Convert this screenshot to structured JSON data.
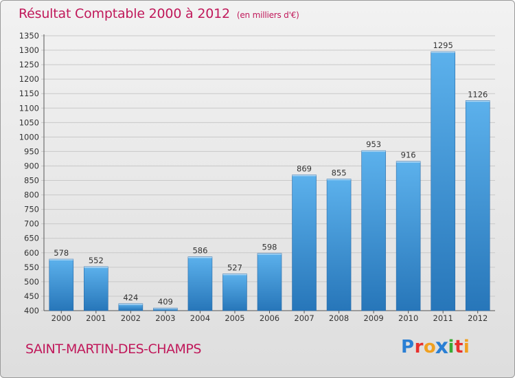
{
  "title": "Résultat Comptable 2000 à 2012",
  "subtitle": "(en milliers d'€)",
  "commune": "SAINT-MARTIN-DES-CHAMPS",
  "logo": {
    "text": "Proxiti",
    "letters": [
      {
        "char": "P",
        "color": "#2a7fd4"
      },
      {
        "char": "r",
        "color": "#e8302c"
      },
      {
        "char": "o",
        "color": "#f0a020"
      },
      {
        "char": "x",
        "color": "#2a7fd4"
      },
      {
        "char": "i",
        "color": "#3aaa35"
      },
      {
        "char": "t",
        "color": "#e8302c"
      },
      {
        "char": "i",
        "color": "#f0a020"
      }
    ]
  },
  "colors": {
    "title": "#c0185a",
    "bar_light": "#5cb1ec",
    "bar_dark": "#2776b9",
    "grid": "#c8c8c8"
  },
  "chart_data": {
    "type": "bar",
    "title": "Résultat Comptable 2000 à 2012",
    "subtitle": "(en milliers d'€)",
    "categories": [
      "2000",
      "2001",
      "2002",
      "2003",
      "2004",
      "2005",
      "2006",
      "2007",
      "2008",
      "2009",
      "2010",
      "2011",
      "2012"
    ],
    "values": [
      578,
      552,
      424,
      409,
      586,
      527,
      598,
      869,
      855,
      953,
      916,
      1295,
      1126
    ],
    "data_labels": [
      "578",
      "552",
      "424",
      "409",
      "586",
      "527",
      "598",
      "869",
      "855",
      "953",
      "916",
      "1295",
      "1126"
    ],
    "ylim": [
      400,
      1350
    ],
    "yticks": [
      400,
      450,
      500,
      550,
      600,
      650,
      700,
      750,
      800,
      850,
      900,
      950,
      1000,
      1050,
      1100,
      1150,
      1200,
      1250,
      1300,
      1350
    ],
    "grid": true,
    "xlabel": "",
    "ylabel": ""
  }
}
